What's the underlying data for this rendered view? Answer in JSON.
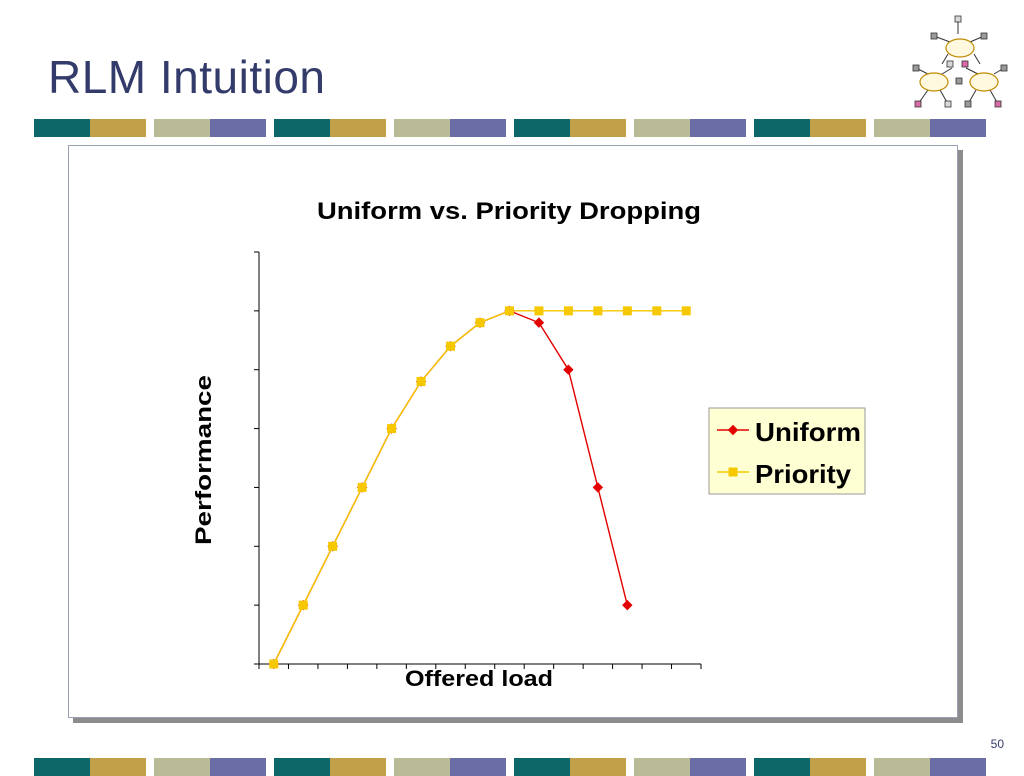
{
  "slide": {
    "title": "RLM Intuition",
    "page_number": "50",
    "band_colors": [
      "#0d6668",
      "#c2a04a",
      "#b8bb95",
      "#6b6ea6"
    ]
  },
  "chart_data": {
    "type": "line",
    "title": "Uniform vs. Priority Dropping",
    "xlabel": "Offered load",
    "ylabel": "Performance",
    "grid": false,
    "legend_position": "right",
    "x": [
      0,
      1,
      2,
      3,
      4,
      5,
      6,
      7,
      8,
      9,
      10,
      11,
      12,
      13,
      14
    ],
    "xlim": [
      -0.5,
      14.5
    ],
    "ylim": [
      0,
      7
    ],
    "y_ticks": [
      0,
      1,
      2,
      3,
      4,
      5,
      6,
      7
    ],
    "series": [
      {
        "name": "Uniform",
        "color": "#e30000",
        "marker": "diamond",
        "values": [
          0,
          1,
          2,
          3,
          4,
          4.8,
          5.4,
          5.8,
          6,
          5.8,
          5,
          3,
          1,
          null,
          null
        ]
      },
      {
        "name": "Priority",
        "color": "#f5c800",
        "marker": "square",
        "values": [
          0,
          1,
          2,
          3,
          4,
          4.8,
          5.4,
          5.8,
          6,
          6,
          6,
          6,
          6,
          6,
          6
        ]
      }
    ]
  }
}
